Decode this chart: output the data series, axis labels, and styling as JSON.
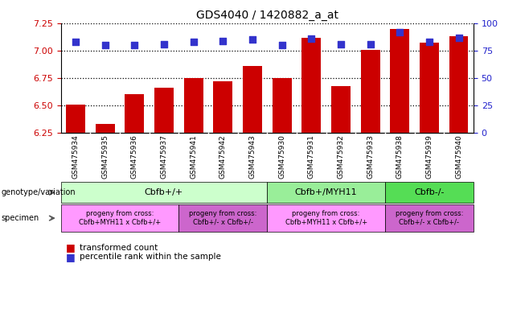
{
  "title": "GDS4040 / 1420882_a_at",
  "samples": [
    "GSM475934",
    "GSM475935",
    "GSM475936",
    "GSM475937",
    "GSM475941",
    "GSM475942",
    "GSM475943",
    "GSM475930",
    "GSM475931",
    "GSM475932",
    "GSM475933",
    "GSM475938",
    "GSM475939",
    "GSM475940"
  ],
  "bar_values": [
    6.51,
    6.33,
    6.6,
    6.66,
    6.75,
    6.72,
    6.86,
    6.75,
    7.12,
    6.68,
    7.01,
    7.2,
    7.07,
    7.13
  ],
  "percentile_values": [
    83,
    80,
    80,
    81,
    83,
    84,
    85,
    80,
    86,
    81,
    81,
    92,
    83,
    87
  ],
  "bar_color": "#cc0000",
  "dot_color": "#3333cc",
  "ylim_left": [
    6.25,
    7.25
  ],
  "ylim_right": [
    0,
    100
  ],
  "yticks_left": [
    6.25,
    6.5,
    6.75,
    7.0,
    7.25
  ],
  "yticks_right": [
    0,
    25,
    50,
    75,
    100
  ],
  "grid_values": [
    6.5,
    6.75,
    7.0
  ],
  "bar_bottom": 6.25,
  "genotype_groups": [
    {
      "label": "Cbfb+/+",
      "start": 0,
      "end": 7,
      "color": "#ccffcc"
    },
    {
      "label": "Cbfb+/MYH11",
      "start": 7,
      "end": 11,
      "color": "#99ee99"
    },
    {
      "label": "Cbfb-/-",
      "start": 11,
      "end": 14,
      "color": "#55dd55"
    }
  ],
  "specimen_groups": [
    {
      "label": "progeny from cross:\nCbfb+MYH11 x Cbfb+/+",
      "start": 0,
      "end": 4,
      "color": "#ff99ff"
    },
    {
      "label": "progeny from cross:\nCbfb+/- x Cbfb+/-",
      "start": 4,
      "end": 7,
      "color": "#cc66cc"
    },
    {
      "label": "progeny from cross:\nCbfb+MYH11 x Cbfb+/+",
      "start": 7,
      "end": 11,
      "color": "#ff99ff"
    },
    {
      "label": "progeny from cross:\nCbfb+/- x Cbfb+/-",
      "start": 11,
      "end": 14,
      "color": "#cc66cc"
    }
  ],
  "ylabel_left_color": "#cc0000",
  "ylabel_right_color": "#2222cc",
  "bar_width": 0.65,
  "dot_size": 35,
  "tick_label_bg": "#dddddd"
}
